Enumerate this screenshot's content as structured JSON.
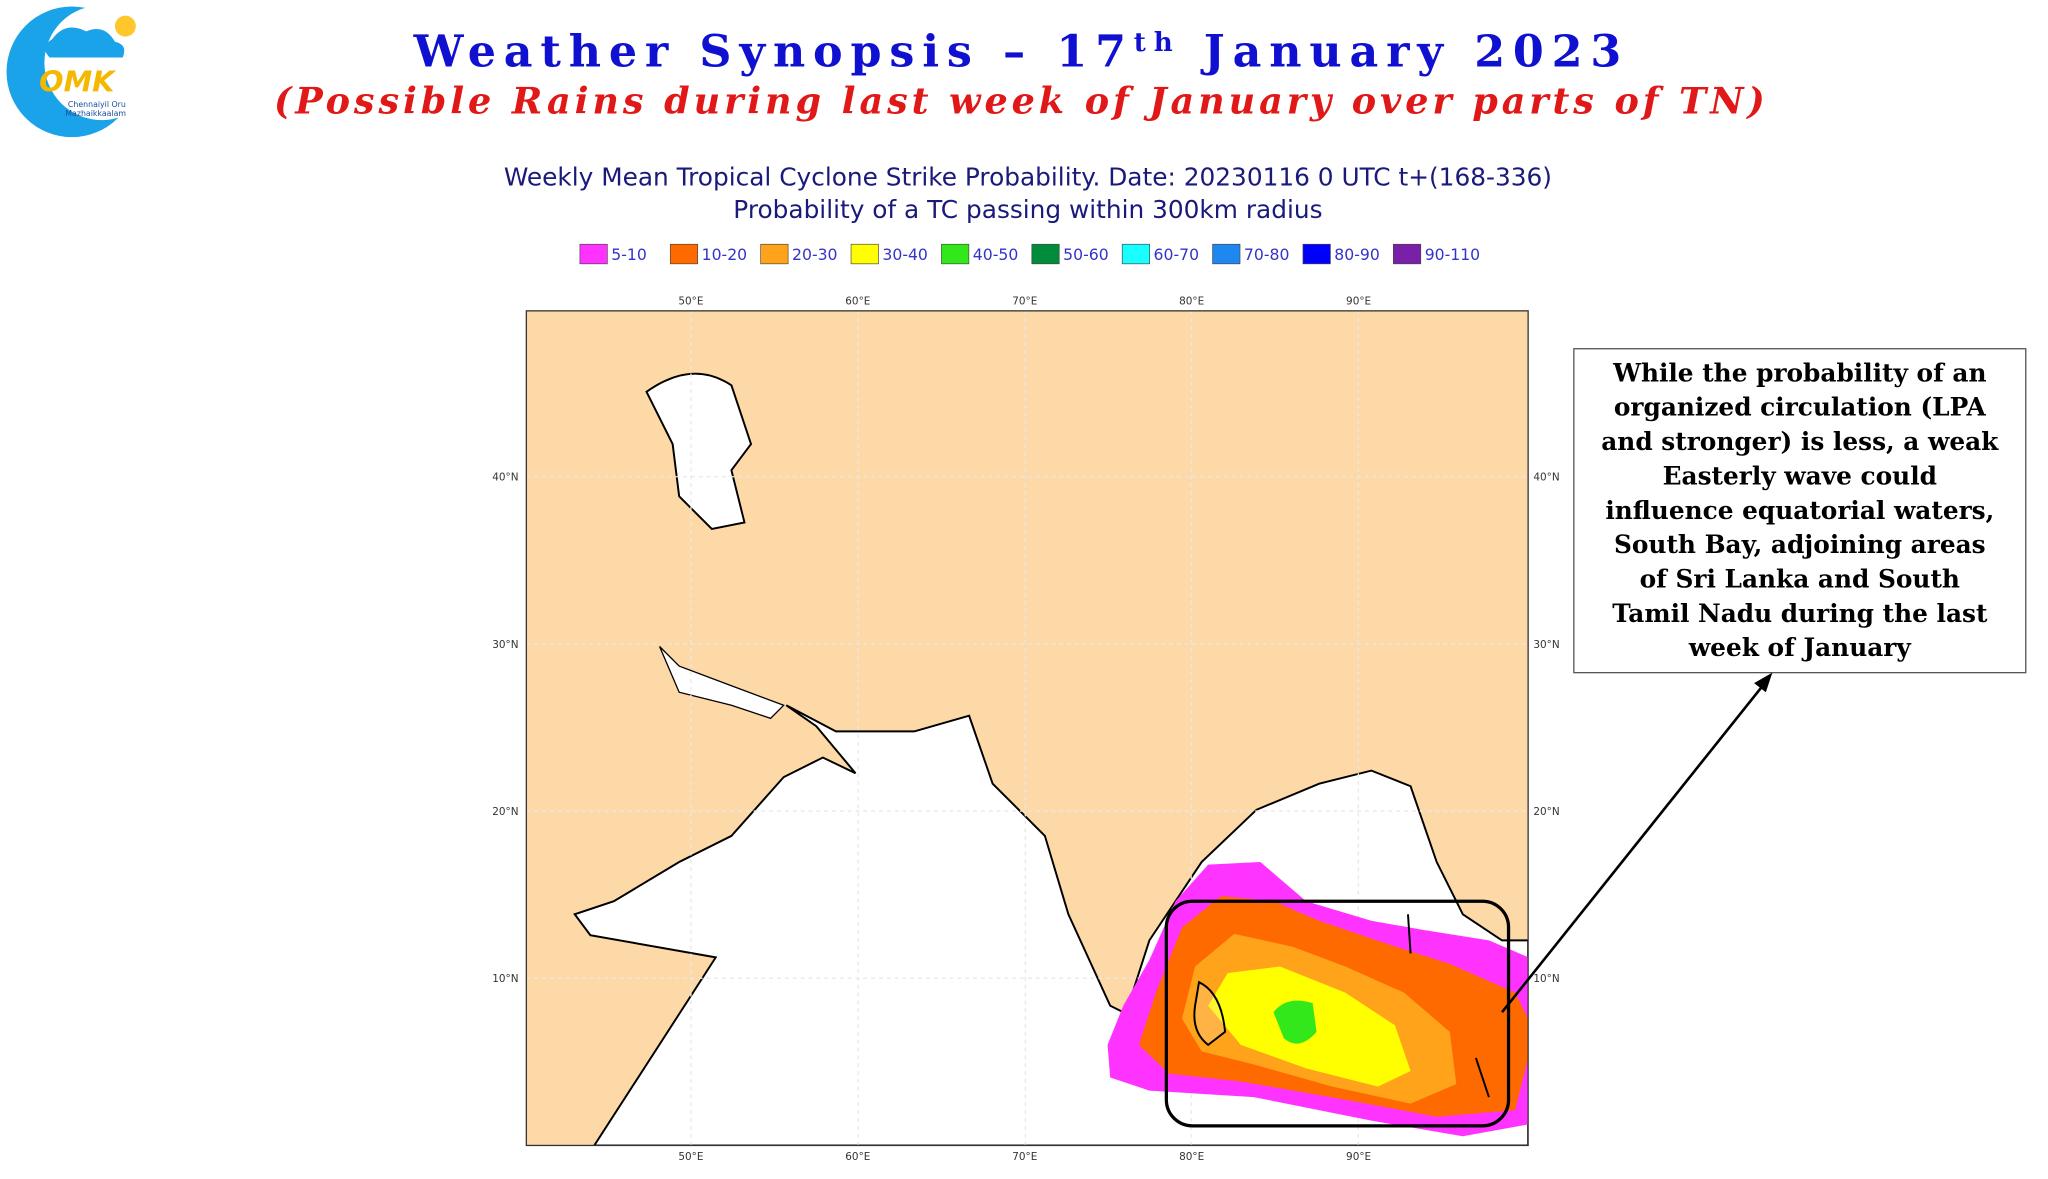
{
  "header": {
    "title_main": "Weather Synopsis – 17",
    "title_sup": "th",
    "title_end": " January 2023",
    "subtitle": "(Possible Rains during last week of January over parts of TN)"
  },
  "logo": {
    "mark": "OMK",
    "name_1": "Chennaiyil Oru",
    "name_2": "Mazhaikkaalam"
  },
  "map": {
    "title_1": "Weekly Mean Tropical Cyclone Strike Probability. Date: 20230116  0 UTC   t+(168-336)",
    "title_2": "Probability of a TC passing within  300km radius",
    "legend": [
      {
        "label": "5-10",
        "color": "#ff33ff"
      },
      {
        "label": "10-20",
        "color": "#ff6a00"
      },
      {
        "label": "20-30",
        "color": "#ffa31a"
      },
      {
        "label": "30-40",
        "color": "#ffff00"
      },
      {
        "label": "40-50",
        "color": "#33e81a"
      },
      {
        "label": "50-60",
        "color": "#008c3a"
      },
      {
        "label": "60-70",
        "color": "#19ffff"
      },
      {
        "label": "70-80",
        "color": "#1e88f0"
      },
      {
        "label": "80-90",
        "color": "#0000ff"
      },
      {
        "label": "90-110",
        "color": "#7a1fa8"
      }
    ],
    "lon_labels": [
      "50°E",
      "60°E",
      "70°E",
      "80°E",
      "90°E"
    ],
    "lat_labels": [
      "40°N",
      "30°N",
      "20°N",
      "10°N"
    ]
  },
  "callout": {
    "lines": [
      "While the probability of an",
      "organized circulation (LPA",
      "and stronger) is less, a weak",
      "Easterly wave could",
      "influence equatorial waters,",
      "South Bay, adjoining areas",
      "of Sri Lanka and South",
      "Tamil Nadu during the last",
      "week of January"
    ]
  }
}
